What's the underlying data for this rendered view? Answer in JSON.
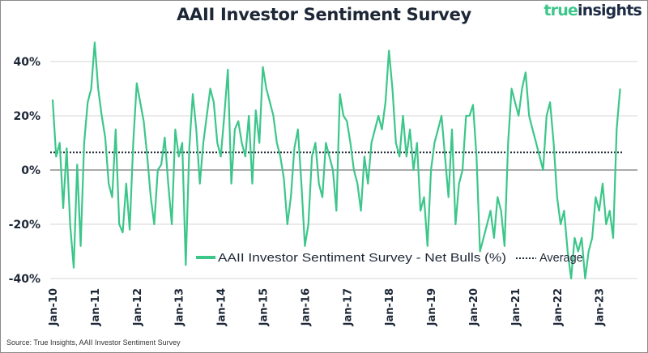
{
  "chart_data": {
    "type": "line",
    "title": "AAII Investor Sentiment Survey",
    "source": "Source: True Insights, AAII Investor Sentiment Survey",
    "logo": {
      "part1": "true",
      "part2": "insights"
    },
    "xlabel": "",
    "ylabel": "",
    "x_start": "2010-01",
    "x_frequency": "monthly",
    "x_ticks": [
      "Jan-10",
      "Jan-11",
      "Jan-12",
      "Jan-13",
      "Jan-14",
      "Jan-15",
      "Jan-16",
      "Jan-17",
      "Jan-18",
      "Jan-19",
      "Jan-20",
      "Jan-21",
      "Jan-22",
      "Jan-23"
    ],
    "y_ticks": [
      40,
      20,
      0,
      -20,
      -40
    ],
    "y_tick_labels": [
      "40%",
      "20%",
      "0%",
      "-20%",
      "-40%"
    ],
    "ylim": [
      -40,
      50
    ],
    "grid": "horizontal",
    "legend_placement": "bottom-center",
    "colors": {
      "series": "#3cc68a",
      "average": "#1d2736",
      "grid": "#d4d4d4",
      "zero_line": "#555555"
    },
    "series": [
      {
        "name": "AAII Investor Sentiment Survey - Net Bulls (%)",
        "values": [
          26,
          5,
          10,
          -14,
          8,
          -20,
          -36,
          2,
          -28,
          10,
          25,
          30,
          47,
          30,
          20,
          12,
          -5,
          -10,
          15,
          -20,
          -23,
          -5,
          -22,
          10,
          32,
          25,
          18,
          5,
          -10,
          -20,
          0,
          2,
          12,
          -5,
          -20,
          15,
          5,
          10,
          -35,
          8,
          28,
          15,
          -5,
          10,
          20,
          30,
          25,
          10,
          5,
          20,
          37,
          -5,
          15,
          18,
          10,
          5,
          20,
          -5,
          22,
          10,
          38,
          30,
          25,
          20,
          10,
          5,
          -3,
          -20,
          -10,
          8,
          15,
          -5,
          -28,
          -20,
          5,
          10,
          -5,
          -10,
          10,
          5,
          0,
          -15,
          28,
          20,
          18,
          10,
          0,
          -5,
          -15,
          5,
          -5,
          10,
          15,
          20,
          15,
          25,
          44,
          30,
          10,
          5,
          20,
          5,
          15,
          0,
          10,
          -15,
          -10,
          -28,
          0,
          10,
          15,
          20,
          5,
          -10,
          15,
          -20,
          -5,
          0,
          20,
          20,
          24,
          5,
          -30,
          -25,
          -20,
          -15,
          -25,
          -10,
          -15,
          -28,
          10,
          30,
          25,
          20,
          30,
          36,
          20,
          15,
          10,
          5,
          0,
          20,
          25,
          10,
          -10,
          -20,
          -15,
          -30,
          -40,
          -25,
          -30,
          -25,
          -40,
          -30,
          -25,
          -10,
          -15,
          -5,
          -20,
          -15,
          -25,
          15,
          30
        ]
      },
      {
        "name": "Average",
        "value": 6.5,
        "style": "dotted"
      }
    ]
  }
}
